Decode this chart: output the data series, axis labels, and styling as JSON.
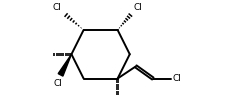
{
  "bg_color": "#ffffff",
  "line_color": "#000000",
  "line_width": 1.4,
  "label_color": "#000000",
  "figsize": [
    2.34,
    1.12
  ],
  "dpi": 100,
  "xlim": [
    -1.0,
    10.5
  ],
  "ylim": [
    -0.5,
    8.5
  ]
}
